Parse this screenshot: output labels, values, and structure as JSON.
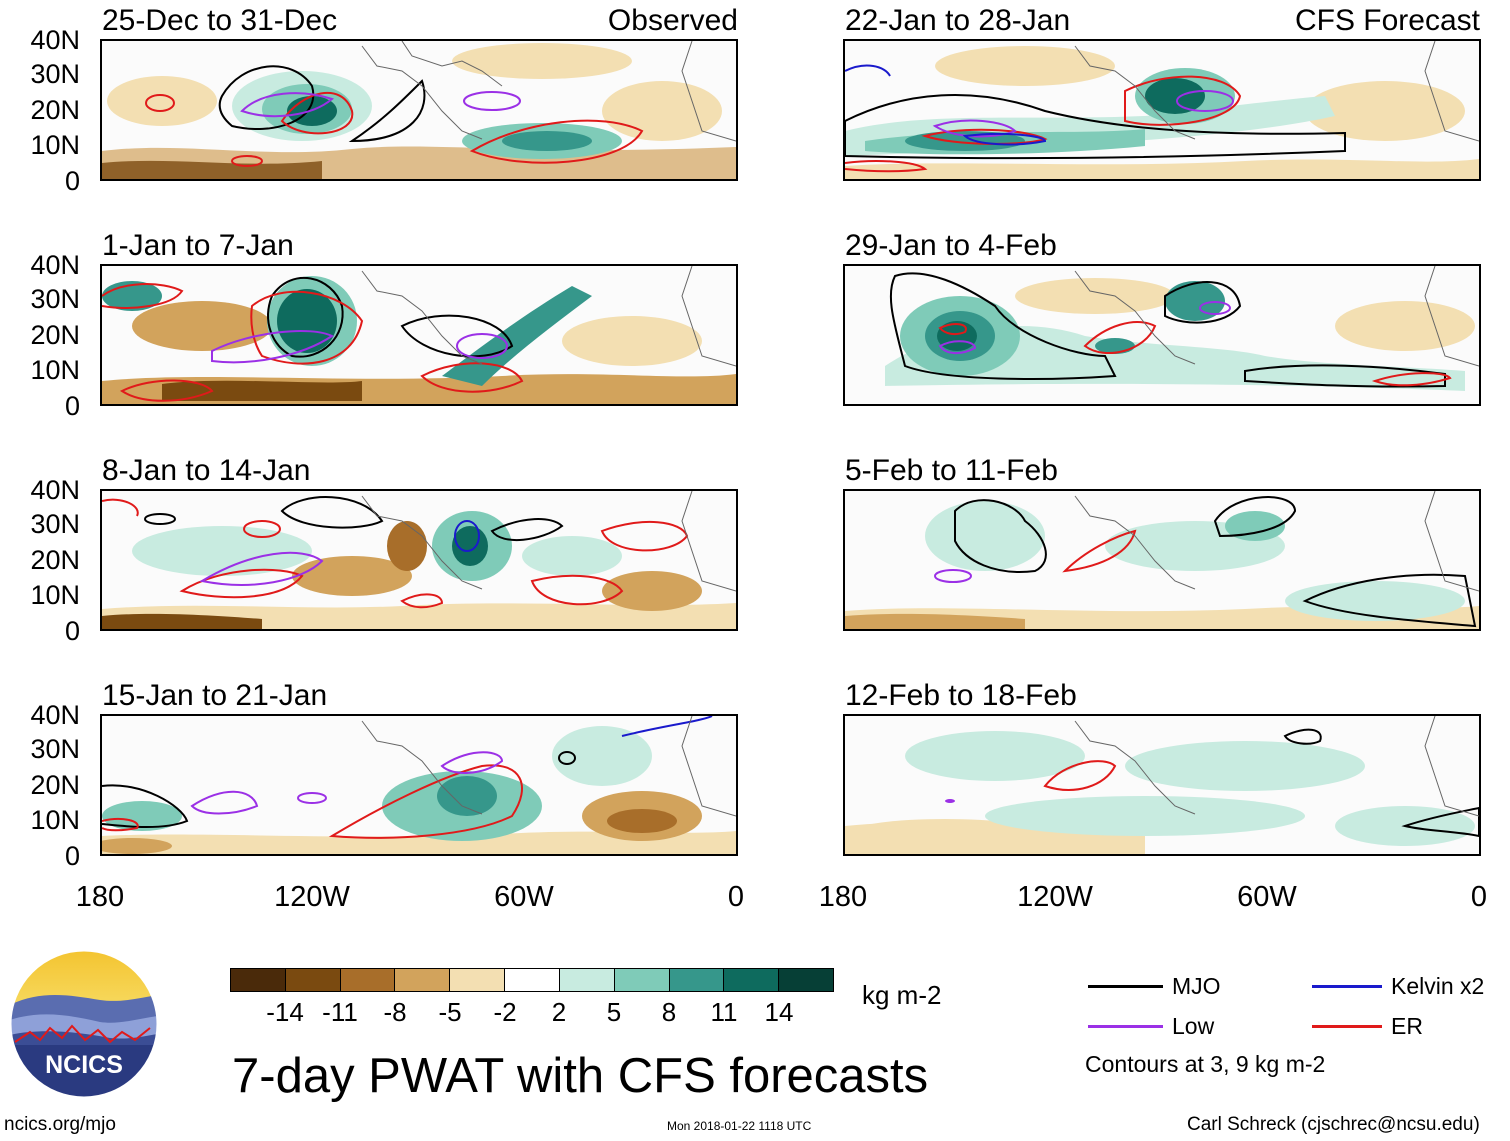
{
  "left_header_right": "Observed",
  "right_header_right": "CFS Forecast",
  "panels": [
    {
      "title": "25-Dec to 31-Dec"
    },
    {
      "title": "22-Jan to 28-Jan"
    },
    {
      "title": "1-Jan to 7-Jan"
    },
    {
      "title": "29-Jan to 4-Feb"
    },
    {
      "title": "8-Jan to 14-Jan"
    },
    {
      "title": "5-Feb to 11-Feb"
    },
    {
      "title": "15-Jan to 21-Jan"
    },
    {
      "title": "12-Feb to 18-Feb"
    }
  ],
  "y_ticks": [
    "40N",
    "30N",
    "20N",
    "10N",
    "0"
  ],
  "x_ticks": [
    "180",
    "120W",
    "60W",
    "0"
  ],
  "colorbar": {
    "unit": "kg m-2",
    "labels": [
      "-14",
      "-11",
      "-8",
      "-5",
      "-2",
      "2",
      "5",
      "8",
      "11",
      "14"
    ],
    "colors": [
      "#4a2a0a",
      "#7a4a10",
      "#a86e2a",
      "#d2a35c",
      "#f3dfb2",
      "#ffffff",
      "#c8ebe0",
      "#7fcbb8",
      "#36978b",
      "#0e6b5e",
      "#063f36"
    ]
  },
  "legend": {
    "items": [
      {
        "label": "MJO",
        "color": "#000000"
      },
      {
        "label": "Kelvin x2",
        "color": "#1a1acc"
      },
      {
        "label": "Low",
        "color": "#9b30e6"
      },
      {
        "label": "ER",
        "color": "#e01a1a"
      }
    ],
    "note": "Contours at 3, 9 kg m-2"
  },
  "title": "7-day PWAT with CFS forecasts",
  "logo_text": "NCICS",
  "footer": {
    "left": "ncics.org/mjo",
    "center": "Mon 2018-01-22 1118 UTC",
    "right": "Carl Schreck (cjschrec@ncsu.edu)"
  }
}
